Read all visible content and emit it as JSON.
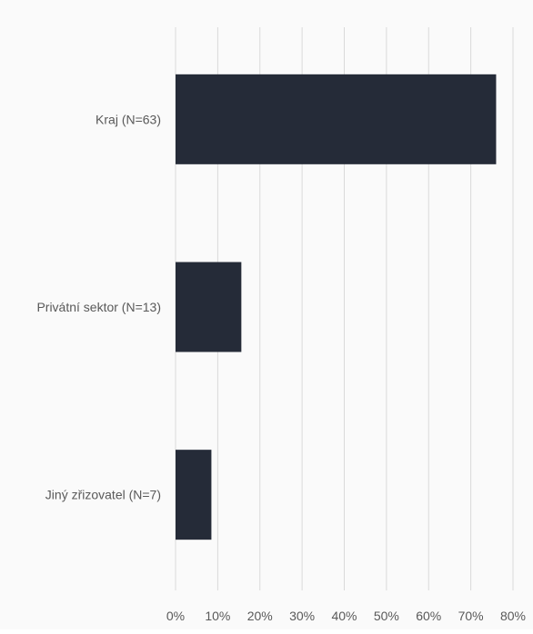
{
  "chart_data": {
    "type": "bar",
    "orientation": "horizontal",
    "categories": [
      "Kraj (N=63)",
      "Privátní sektor (N=13)",
      "Jiný zřizovatel (N=7)"
    ],
    "values": [
      76,
      15.6,
      8.5
    ],
    "unit": "%",
    "xlim": [
      0,
      80
    ],
    "x_ticks": [
      "0%",
      "10%",
      "20%",
      "30%",
      "40%",
      "50%",
      "60%",
      "70%",
      "80%"
    ],
    "grid": true,
    "bar_color": "#252b38",
    "grid_color": "#d9d9d9",
    "title": "",
    "xlabel": "",
    "ylabel": ""
  }
}
